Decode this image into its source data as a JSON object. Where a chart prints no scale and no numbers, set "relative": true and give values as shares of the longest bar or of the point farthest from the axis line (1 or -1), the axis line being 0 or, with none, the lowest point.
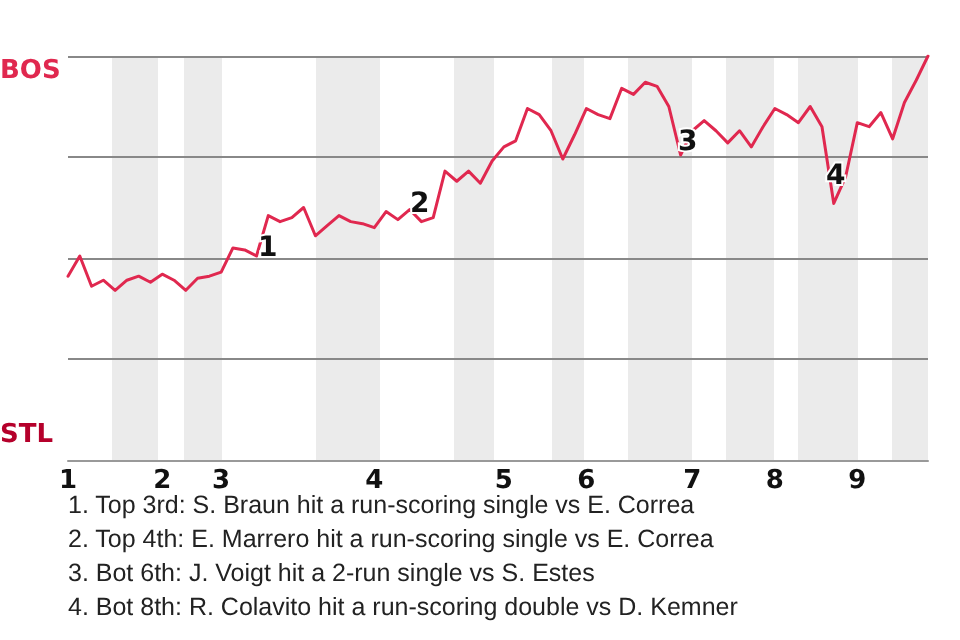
{
  "chart_data": {
    "type": "line",
    "relative": true,
    "categories": [
      "1",
      null,
      null,
      null,
      null,
      null,
      null,
      null,
      "2",
      null,
      null,
      null,
      null,
      "3",
      null,
      null,
      null,
      null,
      null,
      null,
      null,
      null,
      null,
      null,
      null,
      null,
      "4",
      null,
      null,
      null,
      null,
      null,
      null,
      null,
      null,
      null,
      null,
      "5",
      null,
      null,
      null,
      null,
      null,
      null,
      "6",
      null,
      null,
      null,
      null,
      null,
      null,
      null,
      null,
      "7",
      null,
      null,
      null,
      null,
      null,
      null,
      "8",
      null,
      null,
      null,
      null,
      null,
      null,
      "9",
      null,
      null,
      null,
      null,
      null,
      null
    ],
    "series": [
      {
        "color": "#e0284f",
        "values": [
          0.455,
          0.505,
          0.43,
          0.445,
          0.42,
          0.445,
          0.455,
          0.44,
          0.46,
          0.445,
          0.42,
          0.45,
          0.455,
          0.465,
          0.525,
          0.52,
          0.505,
          0.605,
          0.59,
          0.6,
          0.625,
          0.555,
          0.58,
          0.605,
          0.59,
          0.585,
          0.575,
          0.615,
          0.595,
          0.62,
          0.59,
          0.6,
          0.715,
          0.69,
          0.715,
          0.685,
          0.74,
          0.775,
          0.79,
          0.87,
          0.855,
          0.815,
          0.745,
          0.805,
          0.87,
          0.855,
          0.845,
          0.92,
          0.905,
          0.935,
          0.925,
          0.875,
          0.755,
          0.815,
          0.84,
          0.815,
          0.785,
          0.815,
          0.775,
          0.825,
          0.87,
          0.855,
          0.835,
          0.875,
          0.825,
          0.635,
          0.7,
          0.835,
          0.825,
          0.86,
          0.795,
          0.885,
          0.94,
          1
        ]
      }
    ],
    "grid": "y",
    "line_style": "solid",
    "marker": "none",
    "annotations": [
      "BOS",
      "STL",
      "1",
      "2",
      "3",
      "4",
      "1. Top 3rd: S. Braun hit a run-scoring single vs E. Correa",
      "2. Top 4th: E. Marrero hit a run-scoring single vs E. Correa",
      "3. Bot 6th: J. Voigt hit a 2-run single vs S. Estes",
      "4. Bot 8th: R. Colavito hit a run-scoring double vs D. Kemner"
    ]
  }
}
